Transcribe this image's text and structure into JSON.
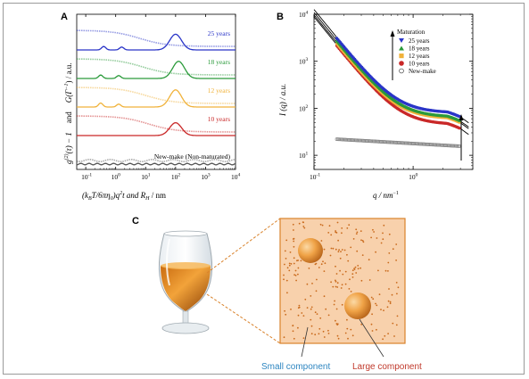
{
  "panels": {
    "a": "A",
    "b": "B",
    "c": "C"
  },
  "chart_data": [
    {
      "type": "line",
      "panel": "A",
      "x_scale": "log",
      "xlim": [
        0.05,
        10000
      ],
      "x_ticks": [
        "10",
        "10",
        "10",
        "10",
        "10",
        "10"
      ],
      "x_tick_exps": [
        "-1",
        "0",
        "1",
        "2",
        "3",
        "4"
      ],
      "xlabel_parts": {
        "open": "(k",
        "sub_b": "B",
        "mid": "T/6πη",
        "sub_0": "0",
        "close": ")q",
        "sup_2": "2",
        "after": "t  and  R",
        "sub_h": "H",
        "unit": "  /  nm"
      },
      "ylabel_parts": {
        "g": "g",
        "sup2": "(2)",
        "tau": "(τ) − 1",
        "and": "and",
        "G": "G(Γ",
        "sup_neg1": "−1",
        "close": ")  /  a.u."
      },
      "series": [
        {
          "name": "25 years",
          "color": "#2a35c8",
          "offset": 5,
          "decay_center": 0.8,
          "peak_log": 2.0,
          "peak_height": 0.55,
          "small_peaks": [
            [
              -0.4,
              0.12
            ],
            [
              0.2,
              0.1
            ]
          ]
        },
        {
          "name": "18 years",
          "color": "#2a9a3a",
          "offset": 4,
          "decay_center": 0.9,
          "peak_log": 2.1,
          "peak_height": 0.6,
          "small_peaks": [
            [
              -0.5,
              0.12
            ],
            [
              0.1,
              0.1
            ]
          ]
        },
        {
          "name": "12 years",
          "color": "#f0b23a",
          "offset": 3,
          "decay_center": 1.0,
          "peak_log": 2.0,
          "peak_height": 0.6,
          "small_peaks": [
            [
              -0.5,
              0.14
            ],
            [
              0.1,
              0.1
            ]
          ]
        },
        {
          "name": "10 years",
          "color": "#c92828",
          "offset": 2,
          "decay_center": 1.1,
          "peak_log": 2.0,
          "peak_height": 0.45,
          "small_peaks": []
        },
        {
          "name": "New-make (Non-maturated)",
          "color": "#555555",
          "offset": 1,
          "decay_center": null,
          "peak_log": null,
          "peak_height": 0,
          "small_peaks": []
        }
      ]
    },
    {
      "type": "scatter",
      "panel": "B",
      "x_scale": "log",
      "y_scale": "log",
      "xlim": [
        0.1,
        4
      ],
      "ylim": [
        5,
        10000
      ],
      "xlabel": "q  /  nm",
      "xlabel_sup": "−1",
      "ylabel": "I (q)  /  a.u.",
      "x_ticks": [
        {
          "base": "10",
          "exp": "-1",
          "v": 0.1
        },
        {
          "base": "10",
          "exp": "0",
          "v": 1
        }
      ],
      "y_ticks": [
        {
          "base": "10",
          "exp": "1",
          "v": 10
        },
        {
          "base": "10",
          "exp": "2",
          "v": 100
        },
        {
          "base": "10",
          "exp": "3",
          "v": 1000
        },
        {
          "base": "10",
          "exp": "4",
          "v": 10000
        }
      ],
      "legend_title": "Maturation",
      "legend_position": "top-right",
      "series": [
        {
          "name": "25 years",
          "color": "#2a35c8",
          "marker": "triangle-down",
          "I0": 3000,
          "plateau": 80,
          "highq_rise": 6
        },
        {
          "name": "18 years",
          "color": "#2a9a3a",
          "marker": "triangle-up",
          "I0": 2600,
          "plateau": 65,
          "highq_rise": 5
        },
        {
          "name": "12 years",
          "color": "#f0b23a",
          "marker": "square",
          "I0": 2300,
          "plateau": 60,
          "highq_rise": 4
        },
        {
          "name": "10 years",
          "color": "#c92828",
          "marker": "circle",
          "I0": 2100,
          "plateau": 45,
          "highq_rise": 3
        },
        {
          "name": "New-make",
          "color": "#888888",
          "marker": "open-circle",
          "I0": 22,
          "plateau": 18,
          "highq_rise": 0
        }
      ]
    }
  ],
  "illustration": {
    "small_label": "Small component",
    "large_label": "Large component",
    "small_color": "#2e86c1",
    "large_color": "#c0392b",
    "box_fill": "#f8d1ac",
    "box_stroke": "#d9822b"
  }
}
